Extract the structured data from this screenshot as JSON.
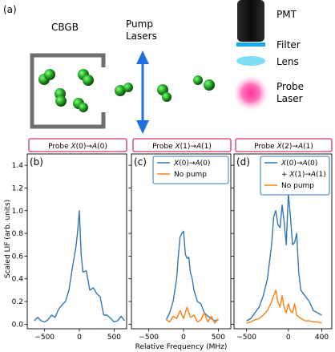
{
  "figure": {
    "panel_a": {
      "label": "(a)",
      "cbgb_label": "CBGB",
      "pump_label_line1": "Pump",
      "pump_label_line2": "Lasers",
      "pmt_label": "PMT",
      "filter_label": "Filter",
      "lens_label": "Lens",
      "probe_label_line1": "Probe",
      "probe_label_line2": "Laser"
    },
    "colors": {
      "series_blue": "#2f79b5",
      "series_orange": "#ff7f0e",
      "probe_box_border": "#d62f73",
      "arrow_blue": "#1f6fe0",
      "cbgb_gray": "#6f6f6f",
      "molecule_green": "#1f9e1f",
      "probe_laser": "#ff2f9a",
      "lens_cyan": "#7fdcf5",
      "filter_blue": "#16a9e8"
    },
    "shared": {
      "ylabel": "Scaled LIF (arb. units)",
      "xlabel": "Relative Frequency (MHz)"
    }
  },
  "chart_data": [
    {
      "type": "line",
      "panel_label": "(b)",
      "title": "Probe X(0)→A(0)",
      "title_parts": {
        "pre": "Probe ",
        "s1": "X",
        "n1": "(0)→",
        "s2": "A",
        "n2": "(0)"
      },
      "xlim": [
        -750,
        680
      ],
      "ylim": [
        -0.04,
        1.5
      ],
      "xticks": [
        -500,
        0,
        500
      ],
      "xtick_labels": [
        "−500",
        "0",
        "500"
      ],
      "yticks": [
        0.0,
        0.2,
        0.4,
        0.6,
        0.8,
        1.0,
        1.2,
        1.4
      ],
      "ytick_labels": [
        "0.0",
        "0.2",
        "0.4",
        "0.6",
        "0.8",
        "1.0",
        "1.2",
        "1.4"
      ],
      "series": [
        {
          "color": "#2f79b5",
          "x": [
            -650,
            -600,
            -550,
            -500,
            -450,
            -400,
            -350,
            -300,
            -250,
            -200,
            -150,
            -100,
            -50,
            -25,
            0,
            25,
            50,
            100,
            150,
            200,
            250,
            300,
            350,
            400,
            450,
            500,
            550,
            600,
            650
          ],
          "y": [
            0.03,
            0.06,
            0.03,
            0.02,
            0.04,
            0.08,
            0.06,
            0.13,
            0.17,
            0.2,
            0.3,
            0.5,
            0.68,
            0.82,
            1.0,
            0.62,
            0.46,
            0.47,
            0.3,
            0.32,
            0.27,
            0.24,
            0.08,
            0.08,
            0.05,
            0.02,
            0.03,
            0.07,
            0.03
          ]
        }
      ]
    },
    {
      "type": "line",
      "panel_label": "(c)",
      "title": "Probe X(1)→A(1)",
      "title_parts": {
        "pre": "Probe ",
        "s1": "X",
        "n1": "(1)→",
        "s2": "A",
        "n2": "(1)"
      },
      "xlim": [
        -750,
        680
      ],
      "ylim": [
        -0.04,
        1.5
      ],
      "xticks": [
        -500,
        0,
        500
      ],
      "xtick_labels": [
        "−500",
        "0",
        "500"
      ],
      "legend": {
        "placement": "top-right",
        "entries": [
          {
            "s": "X",
            "n": "(0)→",
            "s2": "A",
            "n2": "(0)",
            "color": "#2f79b5"
          },
          {
            "text": "No pump",
            "color": "#ff7f0e"
          }
        ]
      },
      "series": [
        {
          "color": "#2f79b5",
          "x": [
            -250,
            -200,
            -150,
            -125,
            -100,
            -75,
            -50,
            -25,
            0,
            25,
            50,
            75,
            100,
            125,
            150,
            200,
            250,
            300,
            350,
            400,
            450,
            500
          ],
          "y": [
            0.04,
            0.1,
            0.2,
            0.3,
            0.4,
            0.6,
            0.77,
            0.8,
            0.82,
            0.62,
            0.58,
            0.59,
            0.45,
            0.4,
            0.3,
            0.2,
            0.18,
            0.1,
            0.07,
            0.05,
            0.03,
            0.04
          ]
        },
        {
          "color": "#ff7f0e",
          "x": [
            -250,
            -200,
            -150,
            -100,
            -50,
            0,
            50,
            100,
            150,
            200,
            250,
            300,
            350,
            400,
            450,
            500
          ],
          "y": [
            0.04,
            0.02,
            0.07,
            0.05,
            0.12,
            0.05,
            0.15,
            0.06,
            0.08,
            0.02,
            0.04,
            0.1,
            0.02,
            0.07,
            0.01,
            0.05
          ]
        }
      ]
    },
    {
      "type": "line",
      "panel_label": "(d)",
      "title": "Probe X(2)→A(1)",
      "title_parts": {
        "pre": "Probe ",
        "s1": "X",
        "n1": "(2)→",
        "s2": "A",
        "n2": "(1)"
      },
      "xlim": [
        -650,
        520
      ],
      "ylim": [
        -0.04,
        1.5
      ],
      "xticks": [
        -500,
        0,
        400
      ],
      "xtick_labels": [
        "−500",
        "0",
        "400"
      ],
      "legend": {
        "placement": "top-right",
        "entries": [
          {
            "s": "X",
            "n": "(0)→",
            "s2": "A",
            "n2": "(0)",
            "color": "#2f79b5"
          },
          {
            "prefix": "+ ",
            "s": "X",
            "n": "(1)→",
            "s2": "A",
            "n2": "(1)",
            "color": "#2f79b5"
          },
          {
            "text": "No pump",
            "color": "#ff7f0e"
          }
        ]
      },
      "series": [
        {
          "color": "#2f79b5",
          "x": [
            -500,
            -450,
            -400,
            -350,
            -300,
            -250,
            -200,
            -175,
            -150,
            -125,
            -100,
            -75,
            -50,
            -25,
            0,
            25,
            50,
            75,
            100,
            125,
            150,
            200,
            250,
            300,
            350,
            400
          ],
          "y": [
            0.03,
            0.05,
            0.1,
            0.15,
            0.25,
            0.4,
            0.7,
            0.95,
            1.0,
            0.88,
            0.85,
            1.05,
            0.9,
            0.7,
            1.15,
            0.95,
            0.7,
            0.72,
            0.8,
            0.45,
            0.3,
            0.25,
            0.2,
            0.12,
            0.1,
            0.08
          ]
        },
        {
          "color": "#ff7f0e",
          "x": [
            -500,
            -450,
            -400,
            -350,
            -300,
            -250,
            -200,
            -175,
            -150,
            -125,
            -100,
            -75,
            -50,
            -25,
            0,
            25,
            50,
            75,
            100,
            150,
            200,
            250,
            300,
            350,
            400
          ],
          "y": [
            0.01,
            0.02,
            0.04,
            0.05,
            0.08,
            0.12,
            0.2,
            0.25,
            0.3,
            0.2,
            0.15,
            0.25,
            0.15,
            0.1,
            0.18,
            0.12,
            0.1,
            0.18,
            0.08,
            0.05,
            0.03,
            0.03,
            0.02,
            0.02,
            0.01
          ]
        }
      ]
    }
  ]
}
